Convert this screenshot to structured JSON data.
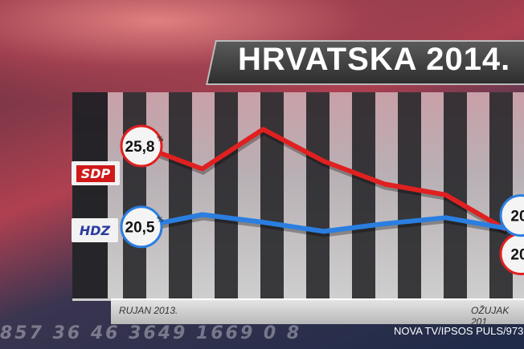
{
  "title": "HRVATSKA 2014.",
  "source": "NOVA TV/IPSOS PULS/973",
  "background_numbers": "857 36 46 3649 1669 0 8",
  "colors": {
    "SDP": "#e02020",
    "HDZ": "#2a7ee0"
  },
  "chart_data": {
    "type": "line",
    "title": "HRVATSKA 2014.",
    "x_labels": {
      "start": "RUJAN 2013.",
      "end": "OŽUJAK 201"
    },
    "x": [
      "2013-09",
      "2013-10",
      "2013-11",
      "2013-12",
      "2014-01",
      "2014-02",
      "2014-03"
    ],
    "series": [
      {
        "name": "SDP",
        "values": [
          25.8,
          24.3,
          26.9,
          24.8,
          23.3,
          22.6,
          20.3
        ],
        "start_label": "25,8",
        "end_label": "20"
      },
      {
        "name": "HDZ",
        "values": [
          20.5,
          21.3,
          20.8,
          20.2,
          20.7,
          21.1,
          20.4
        ],
        "start_label": "20,5",
        "end_label": "20"
      }
    ],
    "unit": "%"
  }
}
